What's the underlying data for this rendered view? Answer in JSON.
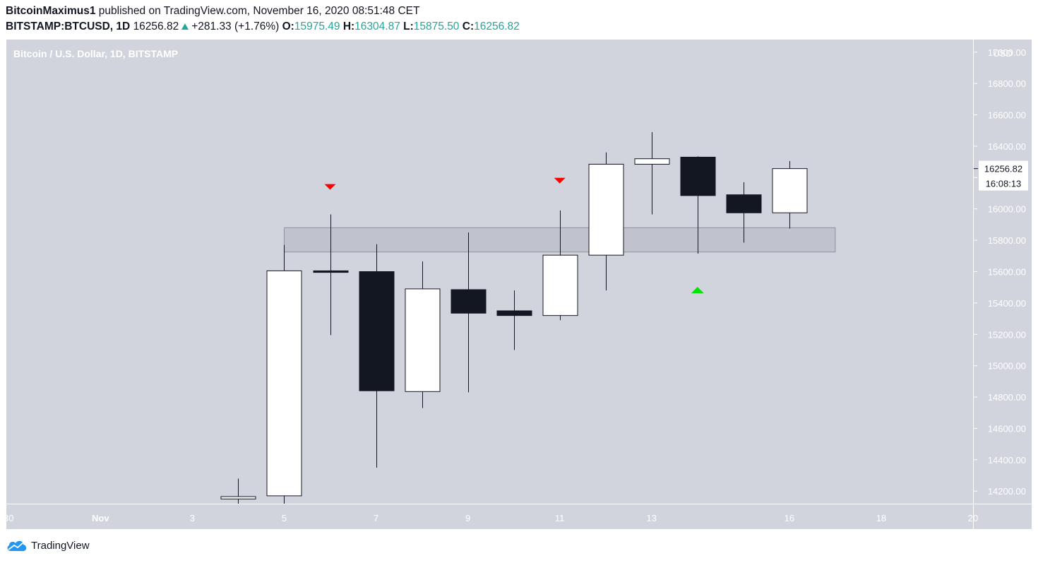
{
  "header": {
    "author": "BitcoinMaximus1",
    "published_text": "published on TradingView.com, November 16, 2020 08:51:48 CET",
    "symbol": "BITSTAMP:BTCUSD, 1D",
    "last": "16256.82",
    "change": "+281.33 (+1.76%)",
    "o_label": "O:",
    "o_value": "15975.49",
    "h_label": "H:",
    "h_value": "16304.87",
    "l_label": "L:",
    "l_value": "15875.50",
    "c_label": "C:",
    "c_value": "16256.82"
  },
  "footer": {
    "brand": "TradingView"
  },
  "chart_data": {
    "type": "candlestick",
    "title": "Bitcoin / U.S. Dollar, 1D, BITSTAMP",
    "currency": "USD",
    "ylim": [
      14120,
      17080
    ],
    "y_ticks": [
      14200,
      14400,
      14600,
      14800,
      15000,
      15200,
      15400,
      15600,
      15800,
      16000,
      16200,
      16400,
      16600,
      16800,
      17000
    ],
    "y_tick_labels": [
      "14200.00",
      "14400.00",
      "14600.00",
      "14800.00",
      "15000.00",
      "15200.00",
      "15400.00",
      "15600.00",
      "15800.00",
      "16000.00",
      "16200.00",
      "16400.00",
      "16600.00",
      "16800.00",
      "17000.00"
    ],
    "x_day_range": [
      -1.05,
      20.0
    ],
    "x_ticks": [
      {
        "label": "30",
        "day": -1
      },
      {
        "label": "Nov",
        "day": 1
      },
      {
        "label": "3",
        "day": 3
      },
      {
        "label": "5",
        "day": 5
      },
      {
        "label": "7",
        "day": 7
      },
      {
        "label": "9",
        "day": 9
      },
      {
        "label": "11",
        "day": 11
      },
      {
        "label": "13",
        "day": 13
      },
      {
        "label": "16",
        "day": 16
      },
      {
        "label": "18",
        "day": 18
      },
      {
        "label": "20",
        "day": 20
      }
    ],
    "candles": [
      {
        "date": "Nov 4",
        "day": 4,
        "open": 14150,
        "high": 14280,
        "low": 14120,
        "close": 14165
      },
      {
        "date": "Nov 5",
        "day": 5,
        "open": 14170,
        "high": 15770,
        "low": 14120,
        "close": 15605
      },
      {
        "date": "Nov 6",
        "day": 6,
        "open": 15605,
        "high": 15965,
        "low": 15195,
        "close": 15595
      },
      {
        "date": "Nov 7",
        "day": 7,
        "open": 15600,
        "high": 15775,
        "low": 14350,
        "close": 14840
      },
      {
        "date": "Nov 8",
        "day": 8,
        "open": 14835,
        "high": 15665,
        "low": 14730,
        "close": 15490
      },
      {
        "date": "Nov 9",
        "day": 9,
        "open": 15485,
        "high": 15850,
        "low": 14830,
        "close": 15335
      },
      {
        "date": "Nov 10",
        "day": 10,
        "open": 15350,
        "high": 15480,
        "low": 15100,
        "close": 15320
      },
      {
        "date": "Nov 11",
        "day": 11,
        "open": 15320,
        "high": 15990,
        "low": 15290,
        "close": 15705
      },
      {
        "date": "Nov 12",
        "day": 12,
        "open": 15705,
        "high": 16360,
        "low": 15480,
        "close": 16285
      },
      {
        "date": "Nov 13",
        "day": 13,
        "open": 16285,
        "high": 16490,
        "low": 15965,
        "close": 16320
      },
      {
        "date": "Nov 14",
        "day": 14,
        "open": 16330,
        "high": 16335,
        "low": 15715,
        "close": 16085
      },
      {
        "date": "Nov 15",
        "day": 15,
        "open": 16090,
        "high": 16170,
        "low": 15785,
        "close": 15975
      },
      {
        "date": "Nov 16",
        "day": 16,
        "open": 15975,
        "high": 16305,
        "low": 15875,
        "close": 16257
      }
    ],
    "zone": {
      "day_from": 5,
      "day_to": 17,
      "low": 15725,
      "high": 15880
    },
    "markers": [
      {
        "type": "down",
        "day": 6,
        "price": 16140,
        "color": "#ff0000"
      },
      {
        "type": "down",
        "day": 11,
        "price": 16180,
        "color": "#ff0000"
      },
      {
        "type": "up",
        "day": 14,
        "price": 15480,
        "color": "#00e600"
      }
    ],
    "last_price_label": "16256.82",
    "countdown_label": "16:08:13"
  }
}
